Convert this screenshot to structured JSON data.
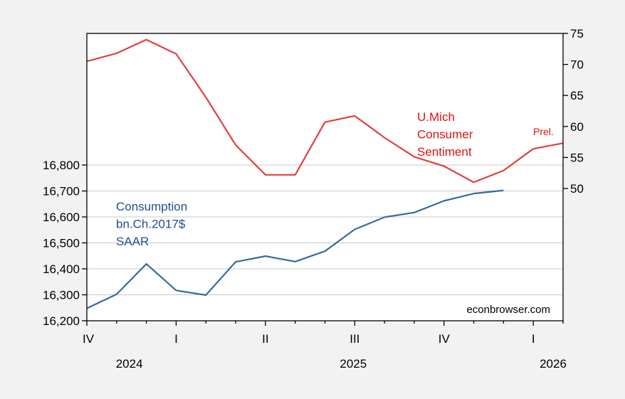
{
  "chart_data": {
    "type": "line",
    "title": "",
    "x": [
      "2024-10",
      "2024-11",
      "2024-12",
      "2025-01",
      "2025-02",
      "2025-03",
      "2025-04",
      "2025-05",
      "2025-06",
      "2025-07",
      "2025-08",
      "2025-09",
      "2025-10",
      "2025-11",
      "2025-12",
      "2026-01",
      "2026-02"
    ],
    "x_quarter_labels": [
      {
        "index": 0,
        "label": "IV"
      },
      {
        "index": 3,
        "label": "I"
      },
      {
        "index": 6,
        "label": "II"
      },
      {
        "index": 9,
        "label": "III"
      },
      {
        "index": 12,
        "label": "IV"
      },
      {
        "index": 15,
        "label": "I"
      }
    ],
    "x_year_labels": [
      {
        "index": 2,
        "label": "2024"
      },
      {
        "index": 9,
        "label": "2025"
      },
      {
        "index": 16,
        "label": "2026"
      }
    ],
    "series": [
      {
        "name": "Consumption bn.Ch.2017$ SAAR",
        "axis": "left",
        "color": "#3a6a9c",
        "label_lines": [
          "Consumption",
          "bn.Ch.2017$",
          "SAAR"
        ],
        "label_color": "#1f4e8c",
        "values": [
          16248,
          16302,
          16419,
          16317,
          16299,
          16427,
          16449,
          16428,
          16468,
          16552,
          16599,
          16617,
          16662,
          16690,
          16702,
          null,
          null
        ]
      },
      {
        "name": "U.Mich Consumer Sentiment",
        "axis": "right",
        "color": "#e04040",
        "label_lines": [
          "U.Mich",
          "Consumer",
          "Sentiment"
        ],
        "label_color": "#dd1111",
        "values": [
          70.5,
          71.8,
          74.0,
          71.7,
          64.7,
          57.0,
          52.2,
          52.2,
          60.7,
          61.7,
          58.2,
          55.1,
          53.6,
          51.0,
          52.9,
          56.4,
          57.3
        ],
        "annotation": "Prel."
      }
    ],
    "left_axis": {
      "range": [
        16200,
        16800
      ],
      "ticks": [
        16200,
        16300,
        16400,
        16500,
        16600,
        16700,
        16800
      ],
      "tick_labels": [
        "16,200",
        "16,300",
        "16,400",
        "16,500",
        "16,600",
        "16,700",
        "16,800"
      ]
    },
    "right_axis": {
      "range": [
        50,
        75
      ],
      "ticks": [
        50,
        55,
        60,
        65,
        70,
        75
      ],
      "tick_labels": [
        "50",
        "55",
        "60",
        "65",
        "70",
        "75"
      ]
    },
    "grid": true,
    "watermark": "econbrowser.com"
  }
}
